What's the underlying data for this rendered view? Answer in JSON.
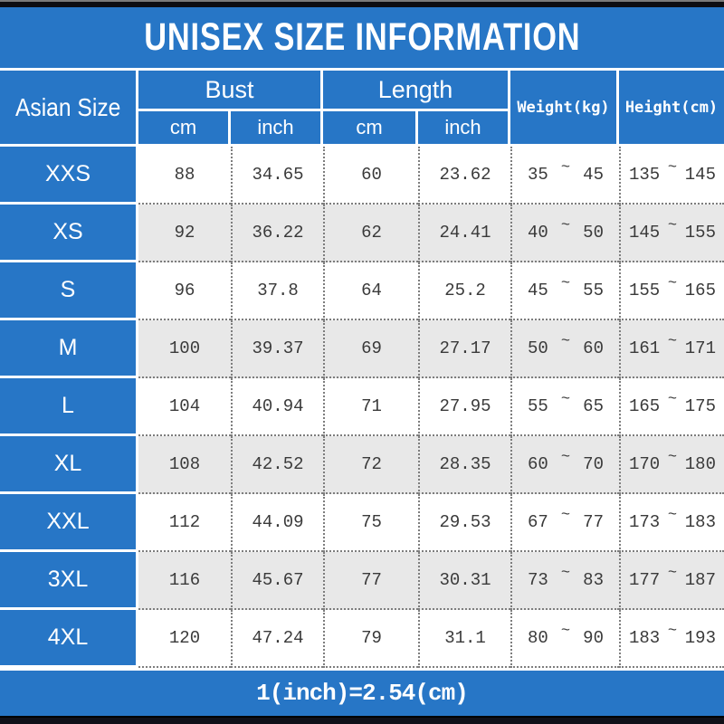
{
  "title": "UNISEX SIZE INFORMATION",
  "footer_note": "1(inch)=2.54(cm)",
  "range_separator": "~",
  "colors": {
    "brand_blue": "#2776c6",
    "alt_row_gray": "#e8e8e8",
    "data_text": "#3a3a3a",
    "header_text": "#ffffff",
    "top_bottom_bar": "#0d0d12"
  },
  "table": {
    "header": {
      "size_col": "Asian Size",
      "bust": "Bust",
      "length": "Length",
      "weight": "Weight(kg)",
      "height": "Height(cm)",
      "unit_cm": "cm",
      "unit_inch": "inch"
    },
    "rows": [
      {
        "size": "XXS",
        "bust_cm": "88",
        "bust_inch": "34.65",
        "length_cm": "60",
        "length_inch": "23.62",
        "weight_min": "35",
        "weight_max": "45",
        "height_min": "135",
        "height_max": "145"
      },
      {
        "size": "XS",
        "bust_cm": "92",
        "bust_inch": "36.22",
        "length_cm": "62",
        "length_inch": "24.41",
        "weight_min": "40",
        "weight_max": "50",
        "height_min": "145",
        "height_max": "155"
      },
      {
        "size": "S",
        "bust_cm": "96",
        "bust_inch": "37.8",
        "length_cm": "64",
        "length_inch": "25.2",
        "weight_min": "45",
        "weight_max": "55",
        "height_min": "155",
        "height_max": "165"
      },
      {
        "size": "M",
        "bust_cm": "100",
        "bust_inch": "39.37",
        "length_cm": "69",
        "length_inch": "27.17",
        "weight_min": "50",
        "weight_max": "60",
        "height_min": "161",
        "height_max": "171"
      },
      {
        "size": "L",
        "bust_cm": "104",
        "bust_inch": "40.94",
        "length_cm": "71",
        "length_inch": "27.95",
        "weight_min": "55",
        "weight_max": "65",
        "height_min": "165",
        "height_max": "175"
      },
      {
        "size": "XL",
        "bust_cm": "108",
        "bust_inch": "42.52",
        "length_cm": "72",
        "length_inch": "28.35",
        "weight_min": "60",
        "weight_max": "70",
        "height_min": "170",
        "height_max": "180"
      },
      {
        "size": "XXL",
        "bust_cm": "112",
        "bust_inch": "44.09",
        "length_cm": "75",
        "length_inch": "29.53",
        "weight_min": "67",
        "weight_max": "77",
        "height_min": "173",
        "height_max": "183"
      },
      {
        "size": "3XL",
        "bust_cm": "116",
        "bust_inch": "45.67",
        "length_cm": "77",
        "length_inch": "30.31",
        "weight_min": "73",
        "weight_max": "83",
        "height_min": "177",
        "height_max": "187"
      },
      {
        "size": "4XL",
        "bust_cm": "120",
        "bust_inch": "47.24",
        "length_cm": "79",
        "length_inch": "31.1",
        "weight_min": "80",
        "weight_max": "90",
        "height_min": "183",
        "height_max": "193"
      }
    ]
  },
  "chart_data": {
    "type": "table",
    "title": "UNISEX SIZE INFORMATION",
    "columns": [
      "Asian Size",
      "Bust cm",
      "Bust inch",
      "Length cm",
      "Length inch",
      "Weight(kg)",
      "Height(cm)"
    ],
    "rows": [
      [
        "XXS",
        88,
        34.65,
        60,
        23.62,
        "35~45",
        "135~145"
      ],
      [
        "XS",
        92,
        36.22,
        62,
        24.41,
        "40~50",
        "145~155"
      ],
      [
        "S",
        96,
        37.8,
        64,
        25.2,
        "45~55",
        "155~165"
      ],
      [
        "M",
        100,
        39.37,
        69,
        27.17,
        "50~60",
        "161~171"
      ],
      [
        "L",
        104,
        40.94,
        71,
        27.95,
        "55~65",
        "165~175"
      ],
      [
        "XL",
        108,
        42.52,
        72,
        28.35,
        "60~70",
        "170~180"
      ],
      [
        "XXL",
        112,
        44.09,
        75,
        29.53,
        "67~77",
        "173~183"
      ],
      [
        "3XL",
        116,
        45.67,
        77,
        30.31,
        "73~83",
        "177~187"
      ],
      [
        "4XL",
        120,
        47.24,
        79,
        31.1,
        "80~90",
        "183~193"
      ]
    ],
    "footnote": "1(inch)=2.54(cm)",
    "layout": "title banner top, 2-level column header, zebra-striped rows, conversion note bottom"
  }
}
